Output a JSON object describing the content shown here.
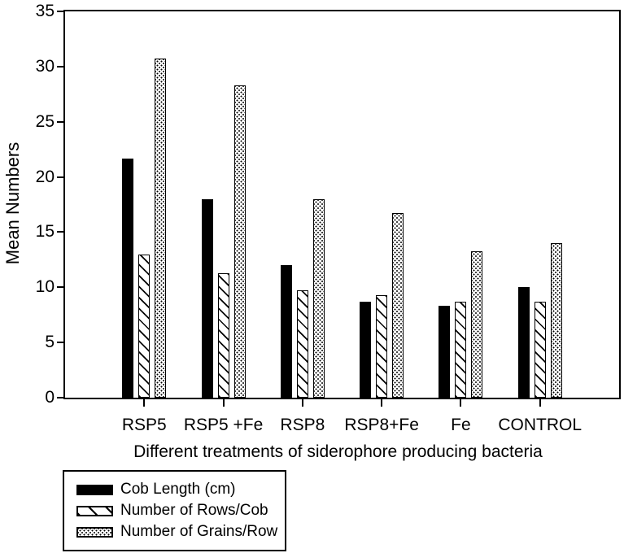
{
  "chart_data": {
    "type": "bar",
    "title": "",
    "xlabel": "Different treatments of siderophore producing bacteria",
    "ylabel": "Mean Numbers",
    "categories": [
      "RSP5",
      "RSP5 +Fe",
      "RSP8",
      "RSP8+Fe",
      "Fe",
      "CONTROL"
    ],
    "series": [
      {
        "name": "Cob Length (cm)",
        "pattern": "solid",
        "values": [
          21.7,
          18.0,
          12.0,
          8.7,
          8.3,
          10.0
        ]
      },
      {
        "name": "Number of Rows/Cob",
        "pattern": "hatch",
        "values": [
          13.0,
          11.3,
          9.7,
          9.3,
          8.7,
          8.7
        ]
      },
      {
        "name": "Number of Grains/Row",
        "pattern": "dots",
        "values": [
          30.7,
          28.3,
          18.0,
          16.7,
          13.3,
          14.0
        ]
      }
    ],
    "ylim": [
      0,
      35
    ],
    "yticks": [
      0,
      5,
      10,
      15,
      20,
      25,
      30,
      35
    ],
    "grid": false,
    "legend_position": "bottom-left",
    "colors": {
      "ink": "#000000",
      "paper": "#ffffff"
    }
  }
}
